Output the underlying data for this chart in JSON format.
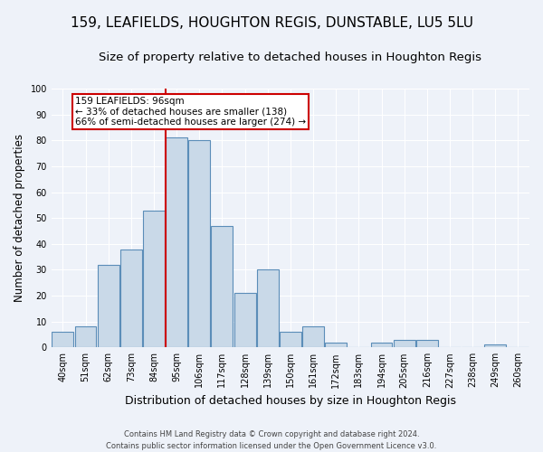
{
  "title_line1": "159, LEAFIELDS, HOUGHTON REGIS, DUNSTABLE, LU5 5LU",
  "title_line2": "Size of property relative to detached houses in Houghton Regis",
  "xlabel": "Distribution of detached houses by size in Houghton Regis",
  "ylabel": "Number of detached properties",
  "footnote1": "Contains HM Land Registry data © Crown copyright and database right 2024.",
  "footnote2": "Contains public sector information licensed under the Open Government Licence v3.0.",
  "bar_labels": [
    "40sqm",
    "51sqm",
    "62sqm",
    "73sqm",
    "84sqm",
    "95sqm",
    "106sqm",
    "117sqm",
    "128sqm",
    "139sqm",
    "150sqm",
    "161sqm",
    "172sqm",
    "183sqm",
    "194sqm",
    "205sqm",
    "216sqm",
    "227sqm",
    "238sqm",
    "249sqm",
    "260sqm"
  ],
  "bar_values": [
    6,
    8,
    32,
    38,
    53,
    81,
    80,
    47,
    21,
    30,
    6,
    8,
    2,
    0,
    2,
    3,
    3,
    0,
    0,
    1,
    0
  ],
  "bar_color": "#c9d9e8",
  "bar_edge_color": "#5b8db8",
  "vline_color": "#cc0000",
  "annotation_text": "159 LEAFIELDS: 96sqm\n← 33% of detached houses are smaller (138)\n66% of semi-detached houses are larger (274) →",
  "annotation_box_color": "white",
  "annotation_box_edge": "#cc0000",
  "ylim": [
    0,
    100
  ],
  "yticks": [
    0,
    10,
    20,
    30,
    40,
    50,
    60,
    70,
    80,
    90,
    100
  ],
  "bg_color": "#eef2f9",
  "grid_color": "#ffffff",
  "title1_fontsize": 11,
  "title2_fontsize": 9.5,
  "xlabel_fontsize": 9,
  "ylabel_fontsize": 8.5,
  "tick_fontsize": 7,
  "annot_fontsize": 7.5,
  "footnote_fontsize": 6
}
